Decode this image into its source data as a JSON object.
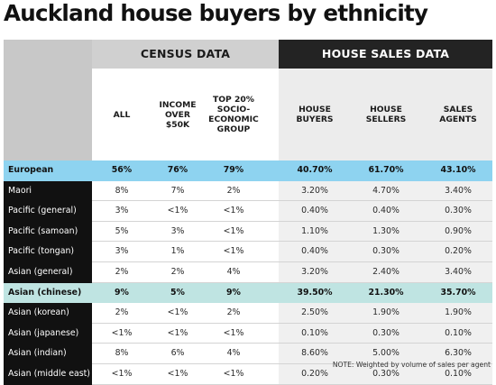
{
  "title": "Auckland house buyers by ethnicity",
  "groups": {
    "census": "CENSUS DATA",
    "sales": "HOUSE SALES DATA"
  },
  "columns": [
    {
      "key": "all",
      "label": "ALL"
    },
    {
      "key": "income",
      "label": "INCOME\nOVER\n$50K"
    },
    {
      "key": "top20",
      "label": "TOP 20%\nSOCIO-\nECONOMIC\nGROUP"
    },
    {
      "key": "buyers",
      "label": "HOUSE\nBUYERS"
    },
    {
      "key": "sellers",
      "label": "HOUSE\nSELLERS"
    },
    {
      "key": "agents",
      "label": "SALES\nAGENTS"
    }
  ],
  "colors": {
    "highlight_blue": "#8ed3f0",
    "highlight_teal": "#bfe4e2",
    "header_dark": "#232323",
    "row_label_bg": "#111111"
  },
  "note": "NOTE: Weighted by volume of sales per agent",
  "chart_data": {
    "type": "table",
    "title": "Auckland house buyers by ethnicity",
    "column_groups": [
      {
        "name": "CENSUS DATA",
        "columns": [
          "ALL",
          "INCOME OVER $50K",
          "TOP 20% SOCIO-ECONOMIC GROUP"
        ]
      },
      {
        "name": "HOUSE SALES DATA",
        "columns": [
          "HOUSE BUYERS",
          "HOUSE SELLERS",
          "SALES AGENTS"
        ]
      }
    ],
    "rows": [
      {
        "ethnicity": "European",
        "highlight": "blue",
        "values": [
          "56%",
          "76%",
          "79%",
          "40.70%",
          "61.70%",
          "43.10%"
        ]
      },
      {
        "ethnicity": "Maori",
        "values": [
          "8%",
          "7%",
          "2%",
          "3.20%",
          "4.70%",
          "3.40%"
        ]
      },
      {
        "ethnicity": "Pacific (general)",
        "values": [
          "3%",
          "<1%",
          "<1%",
          "0.40%",
          "0.40%",
          "0.30%"
        ]
      },
      {
        "ethnicity": "Pacific (samoan)",
        "values": [
          "5%",
          "3%",
          "<1%",
          "1.10%",
          "1.30%",
          "0.90%"
        ]
      },
      {
        "ethnicity": "Pacific (tongan)",
        "values": [
          "3%",
          "1%",
          "<1%",
          "0.40%",
          "0.30%",
          "0.20%"
        ]
      },
      {
        "ethnicity": "Asian (general)",
        "values": [
          "2%",
          "2%",
          "4%",
          "3.20%",
          "2.40%",
          "3.40%"
        ]
      },
      {
        "ethnicity": "Asian (chinese)",
        "highlight": "teal",
        "values": [
          "9%",
          "5%",
          "9%",
          "39.50%",
          "21.30%",
          "35.70%"
        ]
      },
      {
        "ethnicity": "Asian (korean)",
        "values": [
          "2%",
          "<1%",
          "2%",
          "2.50%",
          "1.90%",
          "1.90%"
        ]
      },
      {
        "ethnicity": "Asian (japanese)",
        "values": [
          "<1%",
          "<1%",
          "<1%",
          "0.10%",
          "0.30%",
          "0.10%"
        ]
      },
      {
        "ethnicity": "Asian (indian)",
        "values": [
          "8%",
          "6%",
          "4%",
          "8.60%",
          "5.00%",
          "6.30%"
        ]
      },
      {
        "ethnicity": "Asian (middle east)",
        "values": [
          "<1%",
          "<1%",
          "<1%",
          "0.20%",
          "0.30%",
          "0.10%"
        ]
      }
    ]
  }
}
